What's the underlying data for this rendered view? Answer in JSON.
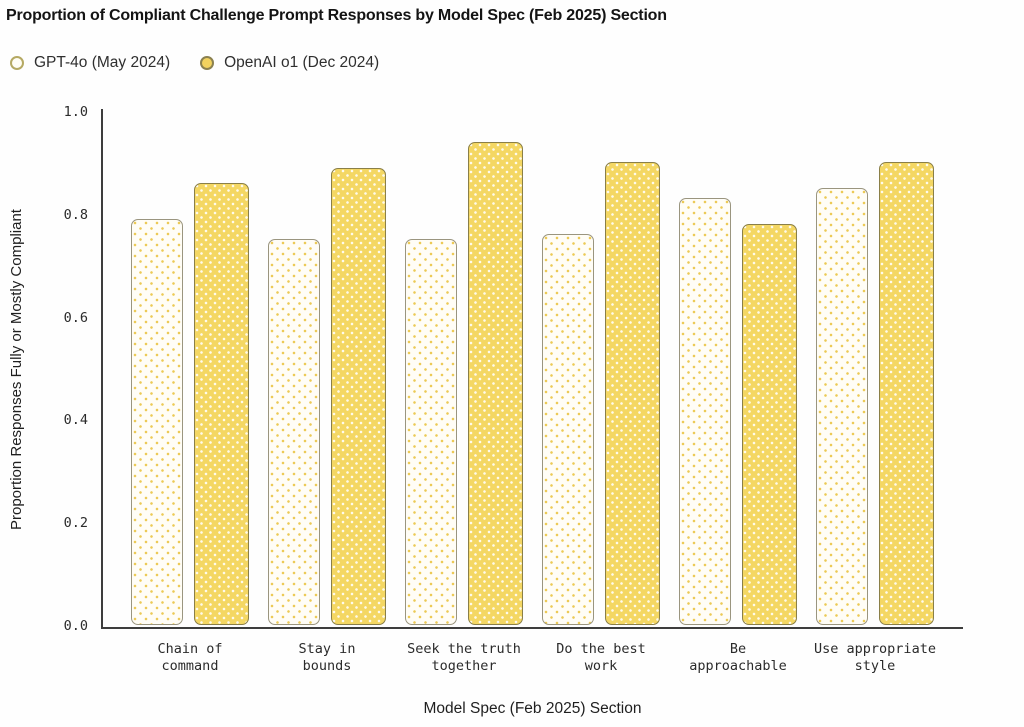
{
  "header": {
    "title": "Proportion of Compliant Challenge Prompt Responses by Model Spec (Feb 2025) Section"
  },
  "legend": {
    "items": [
      {
        "label": "GPT-4o (May 2024)",
        "fill": "#FFFDF4",
        "border": "#B5A963"
      },
      {
        "label": "OpenAI o1 (Dec 2024)",
        "fill": "#F2D25F",
        "border": "#8B8150"
      }
    ]
  },
  "axes": {
    "xlabel": "Model Spec (Feb 2025) Section",
    "ylabel": "Proportion Responses Fully or Mostly Compliant"
  },
  "chart_data": {
    "type": "bar",
    "title": "Proportion of Compliant Challenge Prompt Responses by Model Spec (Feb 2025) Section",
    "categories": [
      "Chain of\ncommand",
      "Stay in\nbounds",
      "Seek the truth\ntogether",
      "Do the best\nwork",
      "Be\napproachable",
      "Use appropriate\nstyle"
    ],
    "series": [
      {
        "name": "GPT-4o (May 2024)",
        "values": [
          0.79,
          0.75,
          0.75,
          0.76,
          0.83,
          0.85
        ],
        "fill": "#FFFDF6",
        "dot_color": "#ECCA56",
        "border": "#9A957F",
        "pattern": "yellow-dots-on-ivory"
      },
      {
        "name": "OpenAI o1 (Dec 2024)",
        "values": [
          0.86,
          0.89,
          0.94,
          0.9,
          0.78,
          0.9
        ],
        "fill": "#F4D763",
        "dot_color": "#FFFFFF",
        "border": "#8A7F48",
        "pattern": "white-dots-on-yellow"
      }
    ],
    "xlabel": "Model Spec (Feb 2025) Section",
    "ylabel": "Proportion Responses Fully or Mostly Compliant",
    "ylim": [
      0.0,
      1.0
    ],
    "yticks": [
      0.0,
      0.2,
      0.4,
      0.6,
      0.8,
      1.0
    ],
    "grid": false,
    "legend_position": "top-left",
    "axis_color": "#3D3D3D"
  }
}
